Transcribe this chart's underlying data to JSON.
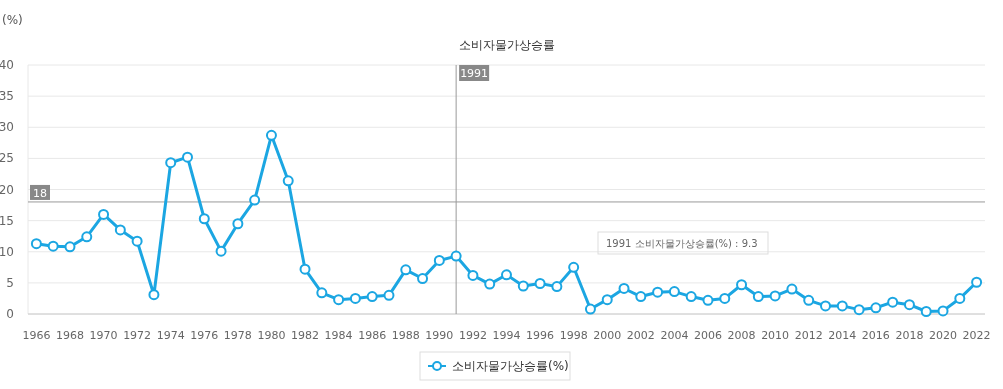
{
  "chart_data": {
    "type": "line",
    "title": "소비자물가상승률",
    "ylabel": "(%)",
    "x": [
      1966,
      1967,
      1968,
      1969,
      1970,
      1971,
      1972,
      1973,
      1974,
      1975,
      1976,
      1977,
      1978,
      1979,
      1980,
      1981,
      1982,
      1983,
      1984,
      1985,
      1986,
      1987,
      1988,
      1989,
      1990,
      1991,
      1992,
      1993,
      1994,
      1995,
      1996,
      1997,
      1998,
      1999,
      2000,
      2001,
      2002,
      2003,
      2004,
      2005,
      2006,
      2007,
      2008,
      2009,
      2010,
      2011,
      2012,
      2013,
      2014,
      2015,
      2016,
      2017,
      2018,
      2019,
      2020,
      2021,
      2022
    ],
    "series": [
      {
        "name": "소비자물가상승률(%)",
        "color": "#1ba6e2",
        "values": [
          11.3,
          10.9,
          10.8,
          12.4,
          16.0,
          13.5,
          11.7,
          3.1,
          24.3,
          25.2,
          15.3,
          10.1,
          14.5,
          18.3,
          28.7,
          21.4,
          7.2,
          3.4,
          2.3,
          2.5,
          2.8,
          3.0,
          7.1,
          5.7,
          8.6,
          9.3,
          6.2,
          4.8,
          6.3,
          4.5,
          4.9,
          4.4,
          7.5,
          0.8,
          2.3,
          4.1,
          2.8,
          3.5,
          3.6,
          2.8,
          2.2,
          2.5,
          4.7,
          2.8,
          2.9,
          4.0,
          2.2,
          1.3,
          1.3,
          0.7,
          1.0,
          1.9,
          1.5,
          0.4,
          0.5,
          2.5,
          5.1
        ]
      }
    ],
    "xlim": [
      1965.5,
      2022.5
    ],
    "xticks": [
      1966,
      1968,
      1970,
      1972,
      1974,
      1976,
      1978,
      1980,
      1982,
      1984,
      1986,
      1988,
      1990,
      1992,
      1994,
      1996,
      1998,
      2000,
      2002,
      2004,
      2006,
      2008,
      2010,
      2012,
      2014,
      2016,
      2018,
      2020,
      2022
    ],
    "ylim": [
      0,
      40
    ],
    "yticks": [
      0,
      5,
      10,
      15,
      20,
      25,
      30,
      35,
      40
    ],
    "grid": "y",
    "legend": "bottom",
    "marker": "circle",
    "line_style": "solid",
    "ref_lines": [
      {
        "axis": "x",
        "value": 1991,
        "label": "1991",
        "color": "#999999"
      },
      {
        "axis": "y",
        "value": 18,
        "label": "18",
        "color": "#999999"
      }
    ],
    "annotations": [
      "1991 소비자물가상승률(%) : 9.3"
    ]
  }
}
